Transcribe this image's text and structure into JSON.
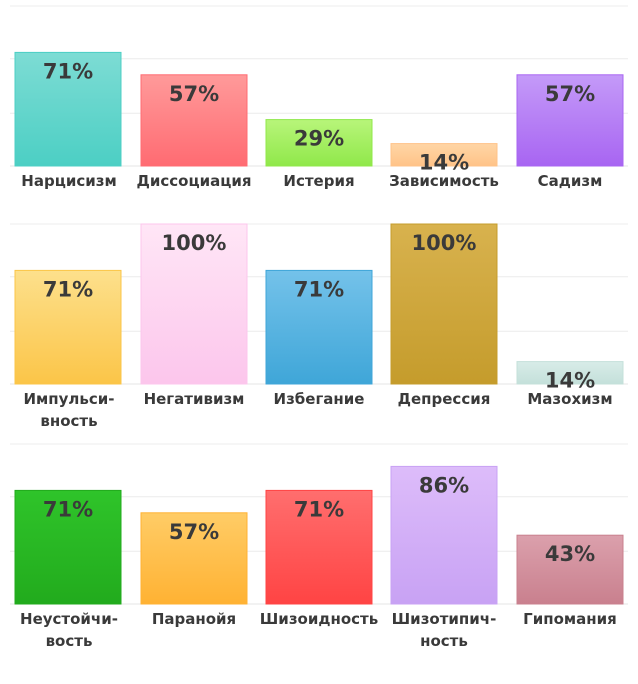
{
  "chart_data": [
    {
      "type": "bar",
      "categories": [
        "Нарцисизм",
        "Диссоциация",
        "Истерия",
        "Зависимость",
        "Садизм"
      ],
      "values": [
        71,
        57,
        29,
        14,
        57
      ],
      "labels": [
        "71%",
        "57%",
        "29%",
        "14%",
        "57%"
      ],
      "colors": [
        [
          "#7ddcd4",
          "#4ccfc4"
        ],
        [
          "#ff9a9a",
          "#ff6b72"
        ],
        [
          "#b8f57a",
          "#90e84a"
        ],
        [
          "#ffd6a6",
          "#ffc388"
        ],
        [
          "#c49af8",
          "#a865f2"
        ]
      ],
      "ylim": [
        0,
        100
      ],
      "grid": true
    },
    {
      "type": "bar",
      "categories": [
        [
          "Импульси-",
          "вность"
        ],
        "Негативизм",
        "Избегание",
        "Депрессия",
        "Мазохизм"
      ],
      "values": [
        71,
        100,
        71,
        100,
        14
      ],
      "labels": [
        "71%",
        "100%",
        "71%",
        "100%",
        "14%"
      ],
      "colors": [
        [
          "#fde08c",
          "#fbc548"
        ],
        [
          "#ffe6f6",
          "#fcc6ec"
        ],
        [
          "#74c2ea",
          "#3fa6d8"
        ],
        [
          "#d8b24e",
          "#c59c2c"
        ],
        [
          "#d8ece8",
          "#c4e0da"
        ]
      ],
      "ylim": [
        0,
        100
      ],
      "grid": true
    },
    {
      "type": "bar",
      "categories": [
        [
          "Неустойчи-",
          "вость"
        ],
        "Паранойя",
        "Шизоидность",
        [
          "Шизотипич-",
          "ность"
        ],
        "Гипомания"
      ],
      "values": [
        71,
        57,
        71,
        86,
        43
      ],
      "labels": [
        "71%",
        "57%",
        "71%",
        "86%",
        "43%"
      ],
      "colors": [
        [
          "#2fc42a",
          "#22ab1d"
        ],
        [
          "#ffcc66",
          "#ffb233"
        ],
        [
          "#ff6e6e",
          "#ff4444"
        ],
        [
          "#ddbcfa",
          "#c8a2f4"
        ],
        [
          "#dba0ac",
          "#c9808e"
        ]
      ],
      "ylim": [
        0,
        100
      ],
      "grid": true
    }
  ]
}
